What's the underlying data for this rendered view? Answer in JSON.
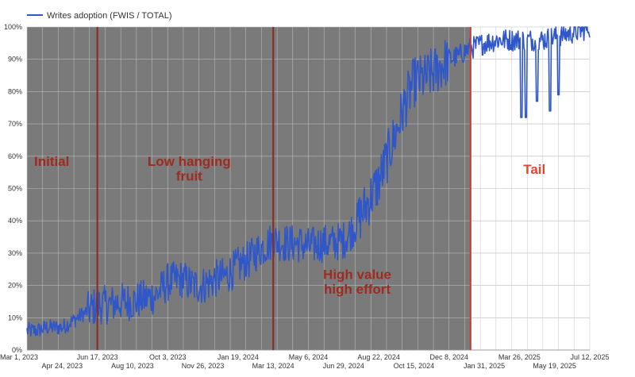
{
  "chart_data": {
    "type": "line",
    "title": "",
    "xlabel": "",
    "ylabel": "",
    "legend": {
      "position": "top-left"
    },
    "series": [
      {
        "name": "Writes adoption (FWIS / TOTAL)",
        "color": "#2f57c9",
        "points": [
          [
            "2023-03-01",
            6
          ],
          [
            "2023-03-15",
            6
          ],
          [
            "2023-04-01",
            7
          ],
          [
            "2023-04-24",
            7
          ],
          [
            "2023-05-10",
            9
          ],
          [
            "2023-05-25",
            11
          ],
          [
            "2023-06-17",
            14
          ],
          [
            "2023-07-05",
            14
          ],
          [
            "2023-07-25",
            15
          ],
          [
            "2023-08-10",
            15
          ],
          [
            "2023-08-30",
            16
          ],
          [
            "2023-09-15",
            17
          ],
          [
            "2023-10-03",
            21
          ],
          [
            "2023-10-25",
            22
          ],
          [
            "2023-11-10",
            20
          ],
          [
            "2023-11-26",
            20
          ],
          [
            "2023-12-15",
            22
          ],
          [
            "2024-01-01",
            23
          ],
          [
            "2024-01-19",
            26
          ],
          [
            "2024-02-05",
            28
          ],
          [
            "2024-02-20",
            31
          ],
          [
            "2024-03-13",
            34
          ],
          [
            "2024-04-01",
            33
          ],
          [
            "2024-04-20",
            33
          ],
          [
            "2024-05-06",
            32
          ],
          [
            "2024-05-25",
            33
          ],
          [
            "2024-06-10",
            33
          ],
          [
            "2024-06-29",
            34
          ],
          [
            "2024-07-15",
            38
          ],
          [
            "2024-08-01",
            44
          ],
          [
            "2024-08-22",
            52
          ],
          [
            "2024-09-05",
            60
          ],
          [
            "2024-09-20",
            69
          ],
          [
            "2024-10-01",
            76
          ],
          [
            "2024-10-15",
            83
          ],
          [
            "2024-11-01",
            84
          ],
          [
            "2024-11-20",
            87
          ],
          [
            "2024-12-08",
            90
          ],
          [
            "2024-12-22",
            91
          ],
          [
            "2025-01-05",
            93
          ],
          [
            "2025-01-31",
            95
          ],
          [
            "2025-02-20",
            96
          ],
          [
            "2025-03-10",
            96
          ],
          [
            "2025-03-26",
            96
          ],
          [
            "2025-04-15",
            96
          ],
          [
            "2025-05-01",
            96
          ],
          [
            "2025-05-19",
            97
          ],
          [
            "2025-06-10",
            98
          ],
          [
            "2025-07-01",
            99
          ],
          [
            "2025-07-12",
            100
          ]
        ],
        "dips": [
          [
            "2025-03-29",
            72
          ],
          [
            "2025-04-05",
            72
          ],
          [
            "2025-04-22",
            77
          ],
          [
            "2025-05-12",
            74
          ],
          [
            "2025-05-25",
            79
          ]
        ]
      }
    ],
    "x_range": [
      "2023-03-01",
      "2025-07-12"
    ],
    "x_ticks_upper": [
      "Mar 1, 2023",
      "Jun 17, 2023",
      "Oct 3, 2023",
      "Jan 19, 2024",
      "May 6, 2024",
      "Aug 22, 2024",
      "Dec 8, 2024",
      "Mar 26, 2025",
      "Jul 12, 2025"
    ],
    "x_ticks_upper_dates": [
      "2023-03-01",
      "2023-06-17",
      "2023-10-03",
      "2024-01-19",
      "2024-05-06",
      "2024-08-22",
      "2024-12-08",
      "2025-03-26",
      "2025-07-12"
    ],
    "x_ticks_lower": [
      "Apr 24, 2023",
      "Aug 10, 2023",
      "Nov 26, 2023",
      "Mar 13, 2024",
      "Jun 29, 2024",
      "Oct 15, 2024",
      "Jan 31, 2025",
      "May 19, 2025"
    ],
    "x_ticks_lower_dates": [
      "2023-04-24",
      "2023-08-10",
      "2023-11-26",
      "2024-03-13",
      "2024-06-29",
      "2024-10-15",
      "2025-01-31",
      "2025-05-19"
    ],
    "y_range": [
      0,
      100
    ],
    "y_ticks": [
      0,
      10,
      20,
      30,
      40,
      50,
      60,
      70,
      80,
      90,
      100
    ],
    "y_tick_labels": [
      "0%",
      "10%",
      "20%",
      "30%",
      "40%",
      "50%",
      "60%",
      "70%",
      "80%",
      "90%",
      "100%"
    ],
    "grid": true,
    "shaded_region": {
      "start": "2023-03-01",
      "end": "2025-01-10",
      "color": "#7a7a7a"
    },
    "dividers": [
      {
        "date": "2023-06-17",
        "color": "#8b2a1e"
      },
      {
        "date": "2024-03-13",
        "color": "#8b2a1e"
      },
      {
        "date": "2025-01-10",
        "color": "#d9342b"
      }
    ],
    "annotations": [
      {
        "text": "Initial",
        "date": "2023-04-08",
        "y": 57,
        "color": "#9e2b1f"
      },
      {
        "text": "Low hanging",
        "date": "2023-11-05",
        "y": 57,
        "color": "#9e2b1f"
      },
      {
        "text": "fruit",
        "date": "2023-11-05",
        "y": 52.5,
        "color": "#9e2b1f"
      },
      {
        "text": "High value",
        "date": "2024-07-20",
        "y": 22,
        "color": "#9e2b1f"
      },
      {
        "text": "high effort",
        "date": "2024-07-20",
        "y": 17.5,
        "color": "#9e2b1f"
      },
      {
        "text": "Tail",
        "date": "2025-04-18",
        "y": 54.5,
        "color": "#e8432e"
      }
    ]
  }
}
